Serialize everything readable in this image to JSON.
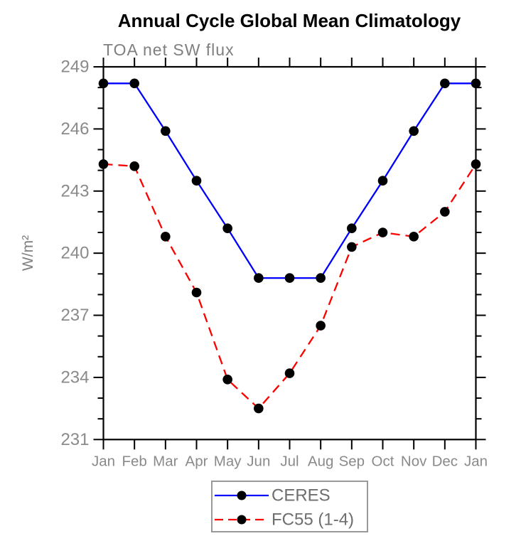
{
  "chart_data": {
    "type": "line",
    "title": "Annual Cycle Global Mean Climatology",
    "subtitle": "TOA net SW flux",
    "xlabel": "",
    "ylabel": "W/m²",
    "ylim": [
      231,
      249
    ],
    "ytick_step_major": 3,
    "ytick_step_minor": 1,
    "grid": false,
    "legend_position": "bottom-center",
    "categories": [
      "Jan",
      "Feb",
      "Mar",
      "Apr",
      "May",
      "Jun",
      "Jul",
      "Aug",
      "Sep",
      "Oct",
      "Nov",
      "Dec",
      "Jan"
    ],
    "series": [
      {
        "name": "CERES",
        "line_color": "#0000ff",
        "line_style": "solid",
        "marker": "filled-circle",
        "marker_color": "#000000",
        "values": [
          248.2,
          248.2,
          245.9,
          243.5,
          241.2,
          238.8,
          238.8,
          238.8,
          241.2,
          243.5,
          245.9,
          248.2,
          248.2
        ]
      },
      {
        "name": "FC55 (1-4)",
        "line_color": "#ff0000",
        "line_style": "dashed",
        "marker": "filled-circle",
        "marker_color": "#000000",
        "values": [
          244.3,
          244.2,
          240.8,
          238.1,
          233.9,
          232.5,
          234.2,
          236.5,
          240.3,
          241.0,
          240.8,
          242.0,
          244.3
        ]
      }
    ]
  },
  "colors": {
    "background": "#ffffff",
    "axis": "#000000",
    "title": "#000000",
    "subtitle": "#7f7f7f",
    "tick_label": "#8a8a8a",
    "legend_text": "#6e6e6e",
    "legend_border": "#999999",
    "ceres_line": "#0000ff",
    "fc55_line": "#ff0000",
    "marker": "#000000"
  }
}
